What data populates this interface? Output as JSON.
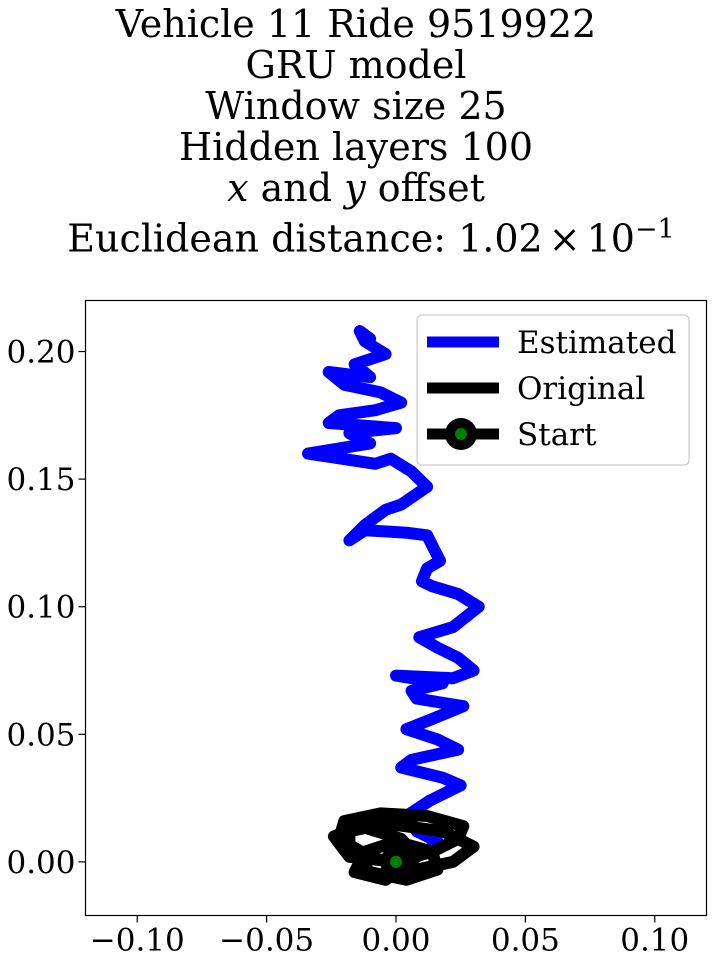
{
  "title_lines": [
    "Vehicle 11 Ride 9519922",
    "GRU model",
    "Window size 25",
    "Hidden layers 100"
  ],
  "subtitle": {
    "var1": "x",
    "joiner": " and ",
    "var2": "y",
    "suffix": " offset"
  },
  "distance": {
    "label": "Euclidean distance: ",
    "mantissa": "1.02",
    "times": "×",
    "base": "10",
    "exponent": "−1"
  },
  "chart_data": {
    "type": "line",
    "xlim": [
      -0.12,
      0.12
    ],
    "ylim": [
      -0.021,
      0.22
    ],
    "xticks": [
      -0.1,
      -0.05,
      0.0,
      0.05,
      0.1
    ],
    "xtick_labels": [
      "−0.10",
      "−0.05",
      "0.00",
      "0.05",
      "0.10"
    ],
    "yticks": [
      0.0,
      0.05,
      0.1,
      0.15,
      0.2
    ],
    "ytick_labels": [
      "0.00",
      "0.05",
      "0.10",
      "0.15",
      "0.20"
    ],
    "grid": false,
    "legend_position": "top-right",
    "series": [
      {
        "name": "Estimated",
        "color": "#0000ff",
        "points": [
          [
            0.0,
            0.0
          ],
          [
            0.012,
            0.004
          ],
          [
            0.016,
            0.008
          ],
          [
            0.008,
            0.012
          ],
          [
            0.004,
            0.018
          ],
          [
            0.013,
            0.024
          ],
          [
            0.025,
            0.03
          ],
          [
            0.018,
            0.033
          ],
          [
            0.002,
            0.037
          ],
          [
            0.006,
            0.04
          ],
          [
            0.024,
            0.044
          ],
          [
            0.016,
            0.048
          ],
          [
            0.004,
            0.052
          ],
          [
            0.014,
            0.056
          ],
          [
            0.026,
            0.061
          ],
          [
            0.02,
            0.062
          ],
          [
            0.008,
            0.064
          ],
          [
            0.006,
            0.067
          ],
          [
            0.018,
            0.07
          ],
          [
            0.0,
            0.073
          ],
          [
            0.022,
            0.072
          ],
          [
            0.03,
            0.075
          ],
          [
            0.024,
            0.08
          ],
          [
            0.016,
            0.084
          ],
          [
            0.009,
            0.088
          ],
          [
            0.022,
            0.092
          ],
          [
            0.032,
            0.1
          ],
          [
            0.024,
            0.105
          ],
          [
            0.014,
            0.108
          ],
          [
            0.01,
            0.11
          ],
          [
            0.012,
            0.115
          ],
          [
            0.017,
            0.118
          ],
          [
            0.014,
            0.124
          ],
          [
            0.012,
            0.128
          ],
          [
            0.004,
            0.129
          ],
          [
            -0.012,
            0.13
          ],
          [
            -0.018,
            0.126
          ],
          [
            -0.012,
            0.132
          ],
          [
            -0.004,
            0.138
          ],
          [
            0.002,
            0.14
          ],
          [
            0.012,
            0.147
          ],
          [
            0.006,
            0.153
          ],
          [
            -0.002,
            0.158
          ],
          [
            -0.008,
            0.156
          ],
          [
            -0.034,
            0.16
          ],
          [
            -0.01,
            0.164
          ],
          [
            -0.018,
            0.168
          ],
          [
            0.0,
            0.17
          ],
          [
            -0.026,
            0.172
          ],
          [
            -0.022,
            0.175
          ],
          [
            -0.008,
            0.177
          ],
          [
            0.002,
            0.18
          ],
          [
            -0.006,
            0.184
          ],
          [
            -0.02,
            0.187
          ],
          [
            -0.026,
            0.192
          ],
          [
            -0.01,
            0.19
          ],
          [
            -0.016,
            0.195
          ],
          [
            -0.004,
            0.199
          ],
          [
            -0.012,
            0.204
          ],
          [
            -0.014,
            0.208
          ],
          [
            -0.01,
            0.205
          ]
        ]
      },
      {
        "name": "Original",
        "color": "#000000",
        "points": [
          [
            0.0,
            0.0
          ],
          [
            0.014,
            0.004
          ],
          [
            0.024,
            0.009
          ],
          [
            0.026,
            0.014
          ],
          [
            0.012,
            0.018
          ],
          [
            -0.006,
            0.019
          ],
          [
            -0.02,
            0.016
          ],
          [
            -0.022,
            0.009
          ],
          [
            -0.01,
            0.002
          ],
          [
            0.008,
            -0.003
          ],
          [
            0.022,
            0.0
          ],
          [
            0.03,
            0.006
          ],
          [
            0.018,
            0.012
          ],
          [
            -0.004,
            0.015
          ],
          [
            -0.018,
            0.012
          ],
          [
            -0.018,
            0.004
          ],
          [
            -0.01,
            -0.004
          ],
          [
            0.004,
            -0.007
          ],
          [
            0.016,
            -0.003
          ],
          [
            0.014,
            0.004
          ],
          [
            0.0,
            0.008
          ],
          [
            -0.012,
            0.004
          ],
          [
            -0.016,
            -0.004
          ],
          [
            -0.004,
            -0.007
          ],
          [
            0.008,
            0.002
          ],
          [
            0.002,
            0.009
          ],
          [
            -0.014,
            0.014
          ],
          [
            -0.024,
            0.01
          ],
          [
            -0.018,
            0.002
          ],
          [
            0.0,
            0.0
          ]
        ]
      }
    ],
    "start": {
      "label": "Start",
      "point": [
        0.0,
        0.0
      ],
      "marker_color": "#008000",
      "edge_color": "#000000"
    }
  }
}
